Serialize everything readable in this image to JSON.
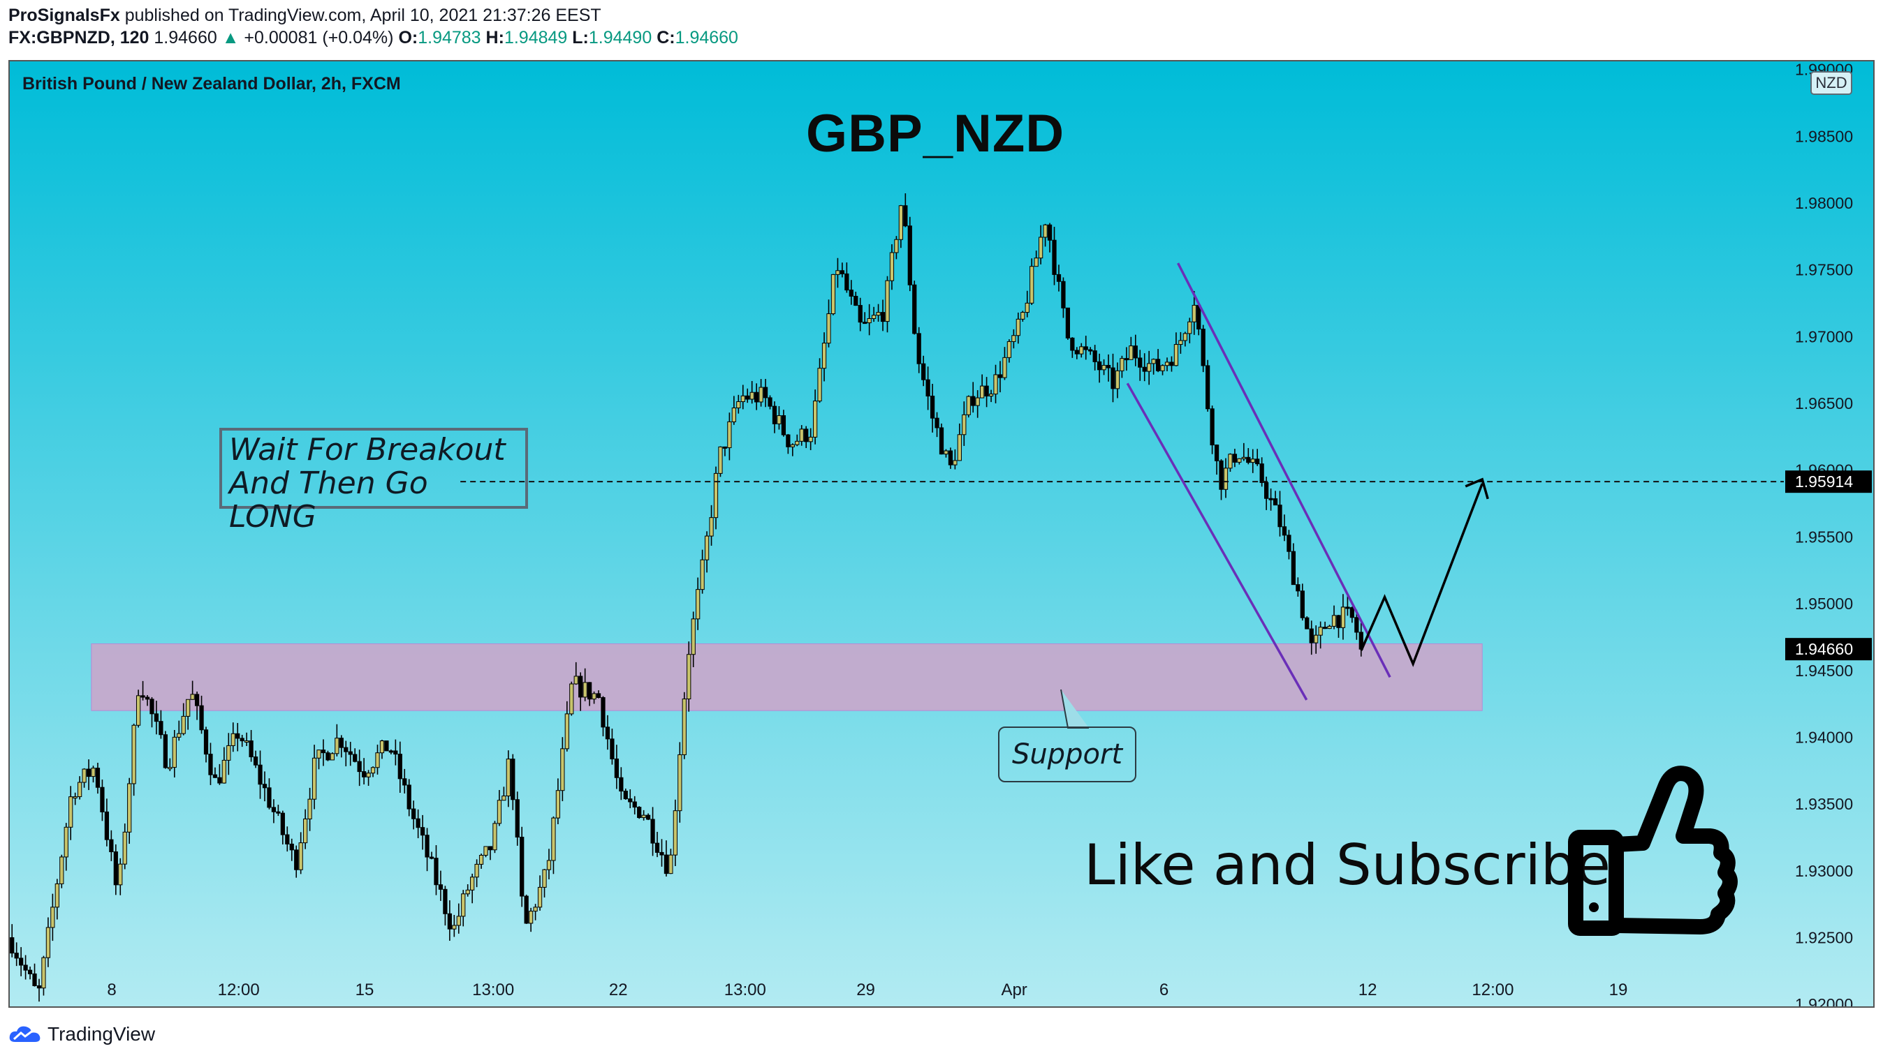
{
  "header": {
    "publisher": "ProSignalsFx",
    "published_text": "published on TradingView.com, April 10, 2021 21:37:26 EEST",
    "symbol": "FX:GBPNZD, 120",
    "last": "1.94660",
    "change": "+0.00081 (+0.04%)",
    "o_label": "O:",
    "o": "1.94783",
    "h_label": "H:",
    "h": "1.94849",
    "l_label": "L:",
    "l": "1.94490",
    "c_label": "C:",
    "c": "1.94660"
  },
  "instrument_title": "British Pound / New Zealand Dollar, 2h, FXCM",
  "currency_badge": "NZD",
  "big_title": "GBP_NZD",
  "note": {
    "line1": "Wait For Breakout",
    "line2": "And Then Go LONG"
  },
  "support_label": "Support",
  "cta": "Like and Subscribe",
  "footer": {
    "logo_text": "TradingView"
  },
  "colors": {
    "bg_top": "#00bcd8",
    "bg_bottom": "#b2ebf2",
    "candle_up": "#c9c56c",
    "candle_down": "#000000",
    "support_zone": "#cfa3c9",
    "channel": "#6a2fb8",
    "price_tag_bg": "#000000"
  },
  "chart_data": {
    "type": "candlestick",
    "symbol": "GBPNZD",
    "timeframe": "2h",
    "ylim": [
      1.918,
      1.9905
    ],
    "y_ticks": [
      "1.99000",
      "1.98500",
      "1.98000",
      "1.97500",
      "1.97000",
      "1.96500",
      "1.96000",
      "1.95500",
      "1.95000",
      "1.94500",
      "1.94000",
      "1.93500",
      "1.93000",
      "1.92500",
      "1.92000"
    ],
    "x_ticks": [
      {
        "label": "8",
        "pos": 0.0575
      },
      {
        "label": "12:00",
        "pos": 0.129
      },
      {
        "label": "15",
        "pos": 0.2
      },
      {
        "label": "13:00",
        "pos": 0.2725
      },
      {
        "label": "22",
        "pos": 0.343
      },
      {
        "label": "13:00",
        "pos": 0.4145
      },
      {
        "label": "29",
        "pos": 0.4825
      },
      {
        "label": "Apr",
        "pos": 0.5662
      },
      {
        "label": "6",
        "pos": 0.6506
      },
      {
        "label": "12",
        "pos": 0.7654
      },
      {
        "label": "12:00",
        "pos": 0.836
      },
      {
        "label": "19",
        "pos": 0.9067
      }
    ],
    "path_points": [
      [
        0.0,
        1.925
      ],
      [
        0.016,
        1.9205
      ],
      [
        0.035,
        1.936
      ],
      [
        0.048,
        1.9378
      ],
      [
        0.061,
        1.928
      ],
      [
        0.073,
        1.9445
      ],
      [
        0.089,
        1.938
      ],
      [
        0.102,
        1.9435
      ],
      [
        0.116,
        1.9365
      ],
      [
        0.129,
        1.9405
      ],
      [
        0.147,
        1.935
      ],
      [
        0.161,
        1.9305
      ],
      [
        0.172,
        1.938
      ],
      [
        0.186,
        1.94
      ],
      [
        0.199,
        1.9375
      ],
      [
        0.214,
        1.9395
      ],
      [
        0.226,
        1.9345
      ],
      [
        0.237,
        1.9305
      ],
      [
        0.25,
        1.9255
      ],
      [
        0.259,
        1.929
      ],
      [
        0.272,
        1.932
      ],
      [
        0.282,
        1.9385
      ],
      [
        0.29,
        1.9255
      ],
      [
        0.303,
        1.93
      ],
      [
        0.317,
        1.944
      ],
      [
        0.332,
        1.943
      ],
      [
        0.345,
        1.935
      ],
      [
        0.357,
        1.9345
      ],
      [
        0.372,
        1.93
      ],
      [
        0.382,
        1.946
      ],
      [
        0.391,
        1.953
      ],
      [
        0.4,
        1.961
      ],
      [
        0.412,
        1.9655
      ],
      [
        0.425,
        1.9655
      ],
      [
        0.44,
        1.962
      ],
      [
        0.452,
        1.963
      ],
      [
        0.466,
        1.9755
      ],
      [
        0.48,
        1.9705
      ],
      [
        0.493,
        1.972
      ],
      [
        0.503,
        1.9805
      ],
      [
        0.511,
        1.969
      ],
      [
        0.52,
        1.964
      ],
      [
        0.53,
        1.96
      ],
      [
        0.542,
        1.9655
      ],
      [
        0.555,
        1.9665
      ],
      [
        0.57,
        1.971
      ],
      [
        0.584,
        1.979
      ],
      [
        0.596,
        1.97
      ],
      [
        0.612,
        1.968
      ],
      [
        0.622,
        1.9665
      ],
      [
        0.632,
        1.969
      ],
      [
        0.646,
        1.9675
      ],
      [
        0.658,
        1.969
      ],
      [
        0.668,
        1.973
      ],
      [
        0.674,
        1.966
      ],
      [
        0.682,
        1.959
      ],
      [
        0.692,
        1.9615
      ],
      [
        0.705,
        1.9595
      ],
      [
        0.716,
        1.956
      ],
      [
        0.726,
        1.951
      ],
      [
        0.734,
        1.9465
      ],
      [
        0.744,
        1.949
      ],
      [
        0.756,
        1.949
      ],
      [
        0.763,
        1.9466
      ]
    ],
    "resistance_level": 1.95914,
    "current_price": 1.9466,
    "support_zone": {
      "from": 1.942,
      "to": 1.947,
      "x_from": 0.046,
      "x_to": 0.83
    },
    "annotations": [
      "GBP_NZD",
      "Wait For Breakout",
      "And Then Go LONG",
      "Support",
      "Like and Subscribe"
    ]
  }
}
